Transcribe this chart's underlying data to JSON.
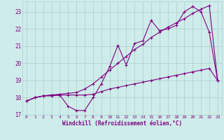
{
  "xlabel": "Windchill (Refroidissement éolien,°C)",
  "background_color": "#ceecea",
  "grid_color": "#aacfcc",
  "line_color": "#800080",
  "text_color": "#800080",
  "xlim": [
    -0.5,
    23.5
  ],
  "ylim": [
    17.0,
    23.6
  ],
  "yticks": [
    17,
    18,
    19,
    20,
    21,
    22,
    23
  ],
  "xticks": [
    0,
    1,
    2,
    3,
    4,
    5,
    6,
    7,
    8,
    9,
    10,
    11,
    12,
    13,
    14,
    15,
    16,
    17,
    18,
    19,
    20,
    21,
    22,
    23
  ],
  "x_data": [
    0,
    1,
    2,
    3,
    4,
    5,
    6,
    7,
    8,
    9,
    10,
    11,
    12,
    13,
    14,
    15,
    16,
    17,
    18,
    19,
    20,
    21,
    22,
    23
  ],
  "line1_y": [
    17.8,
    18.0,
    18.1,
    18.1,
    18.15,
    17.5,
    17.25,
    17.25,
    18.0,
    18.8,
    19.8,
    21.05,
    19.9,
    21.15,
    21.3,
    22.5,
    21.9,
    22.0,
    22.2,
    23.0,
    23.3,
    23.0,
    21.8,
    19.0
  ],
  "line2_y": [
    17.8,
    18.0,
    18.1,
    18.15,
    18.15,
    18.15,
    18.15,
    18.15,
    18.2,
    18.35,
    18.5,
    18.6,
    18.7,
    18.8,
    18.9,
    19.0,
    19.1,
    19.2,
    19.3,
    19.4,
    19.5,
    19.6,
    19.7,
    19.0
  ],
  "line3_y": [
    17.8,
    18.0,
    18.1,
    18.15,
    18.2,
    18.25,
    18.3,
    18.5,
    18.8,
    19.2,
    19.6,
    20.0,
    20.4,
    20.8,
    21.1,
    21.5,
    21.8,
    22.1,
    22.35,
    22.6,
    22.9,
    23.15,
    23.35,
    19.0
  ]
}
